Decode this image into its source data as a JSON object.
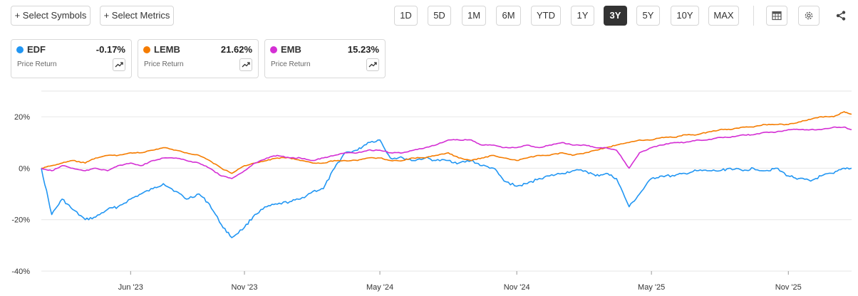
{
  "toolbar": {
    "select_symbols": "+ Select Symbols",
    "select_metrics": "+ Select Metrics",
    "ranges": [
      "1D",
      "5D",
      "1M",
      "6M",
      "YTD",
      "1Y",
      "3Y",
      "5Y",
      "10Y",
      "MAX"
    ],
    "active_range": "3Y"
  },
  "cards": [
    {
      "symbol": "EDF",
      "change": "-0.17%",
      "metric": "Price Return",
      "color": "#2196F3"
    },
    {
      "symbol": "LEMB",
      "change": "21.62%",
      "metric": "Price Return",
      "color": "#F57C00"
    },
    {
      "symbol": "EMB",
      "change": "15.23%",
      "metric": "Price Return",
      "color": "#D42FD4"
    }
  ],
  "colors": {
    "EDF": "#2196F3",
    "LEMB": "#F57C00",
    "EMB": "#D42FD4",
    "grid": "#e6e6e6",
    "active_button": "#333333"
  },
  "icons": {
    "table": "table-icon",
    "settings": "gear-icon",
    "share": "share-icon",
    "trend": "trend-arrow-icon"
  },
  "chart_data": {
    "type": "line",
    "title": "",
    "xlabel": "",
    "ylabel": "",
    "y_unit": "%",
    "x_range": [
      "2023-02-01",
      "2026-01-25"
    ],
    "ylim": [
      -40,
      30
    ],
    "y_ticks": [
      20,
      0,
      -20,
      -40
    ],
    "y_tick_labels": [
      "20%",
      "0%",
      "-20%",
      "-40%"
    ],
    "x_ticks": [
      "2023-06-01",
      "2023-11-01",
      "2024-05-01",
      "2024-11-01",
      "2025-05-01",
      "2025-11-01"
    ],
    "x_tick_labels": [
      "Jun '23",
      "Nov '23",
      "May '24",
      "Nov '24",
      "May '25",
      "Nov '25"
    ],
    "grid": true,
    "legend": "top-left cards",
    "series": [
      {
        "name": "EDF",
        "x": [
          "2023-02-01",
          "2023-02-15",
          "2023-03-01",
          "2023-03-15",
          "2023-04-01",
          "2023-04-15",
          "2023-05-01",
          "2023-05-15",
          "2023-06-01",
          "2023-06-15",
          "2023-07-01",
          "2023-07-15",
          "2023-08-01",
          "2023-08-15",
          "2023-09-01",
          "2023-09-15",
          "2023-10-01",
          "2023-10-15",
          "2023-11-01",
          "2023-11-15",
          "2023-12-01",
          "2023-12-15",
          "2024-01-01",
          "2024-01-15",
          "2024-02-01",
          "2024-02-15",
          "2024-03-01",
          "2024-03-15",
          "2024-04-01",
          "2024-04-15",
          "2024-05-01",
          "2024-05-15",
          "2024-06-01",
          "2024-06-15",
          "2024-07-01",
          "2024-07-15",
          "2024-08-01",
          "2024-08-15",
          "2024-09-01",
          "2024-09-15",
          "2024-10-01",
          "2024-10-15",
          "2024-11-01",
          "2024-11-15",
          "2024-12-01",
          "2024-12-15",
          "2025-01-01",
          "2025-01-15",
          "2025-02-01",
          "2025-02-15",
          "2025-03-01",
          "2025-03-15",
          "2025-04-01",
          "2025-04-15",
          "2025-05-01",
          "2025-05-15",
          "2025-06-01",
          "2025-06-15",
          "2025-07-01",
          "2025-07-15",
          "2025-08-01",
          "2025-08-15",
          "2025-09-01",
          "2025-09-15",
          "2025-10-01",
          "2025-10-15",
          "2025-11-01",
          "2025-11-15",
          "2025-12-01",
          "2025-12-15",
          "2026-01-01",
          "2026-01-15",
          "2026-01-25"
        ],
        "values": [
          0,
          -18,
          -12,
          -16,
          -20,
          -19,
          -16,
          -15,
          -12,
          -10,
          -8,
          -6,
          -9,
          -12,
          -10,
          -14,
          -22,
          -27,
          -23,
          -18,
          -15,
          -14,
          -13,
          -12,
          -9,
          -8,
          0,
          6,
          7,
          10,
          11,
          4,
          4,
          3,
          4,
          3,
          3,
          2,
          3,
          1,
          0,
          -5,
          -7,
          -6,
          -4,
          -3,
          -2,
          -1,
          -1,
          -3,
          -2,
          -4,
          -15,
          -10,
          -4,
          -3,
          -3,
          -2,
          -1,
          -1,
          -1,
          0,
          -1,
          0,
          -1,
          0,
          -3,
          -4,
          -5,
          -3,
          -2,
          0,
          0
        ]
      },
      {
        "name": "LEMB",
        "x": [
          "2023-02-01",
          "2023-02-15",
          "2023-03-01",
          "2023-03-15",
          "2023-04-01",
          "2023-04-15",
          "2023-05-01",
          "2023-05-15",
          "2023-06-01",
          "2023-06-15",
          "2023-07-01",
          "2023-07-15",
          "2023-08-01",
          "2023-08-15",
          "2023-09-01",
          "2023-09-15",
          "2023-10-01",
          "2023-10-15",
          "2023-11-01",
          "2023-11-15",
          "2023-12-01",
          "2023-12-15",
          "2024-01-01",
          "2024-01-15",
          "2024-02-01",
          "2024-02-15",
          "2024-03-01",
          "2024-03-15",
          "2024-04-01",
          "2024-04-15",
          "2024-05-01",
          "2024-05-15",
          "2024-06-01",
          "2024-06-15",
          "2024-07-01",
          "2024-07-15",
          "2024-08-01",
          "2024-08-15",
          "2024-09-01",
          "2024-09-15",
          "2024-10-01",
          "2024-10-15",
          "2024-11-01",
          "2024-11-15",
          "2024-12-01",
          "2024-12-15",
          "2025-01-01",
          "2025-01-15",
          "2025-02-01",
          "2025-02-15",
          "2025-03-01",
          "2025-03-15",
          "2025-04-01",
          "2025-04-15",
          "2025-05-01",
          "2025-05-15",
          "2025-06-01",
          "2025-06-15",
          "2025-07-01",
          "2025-07-15",
          "2025-08-01",
          "2025-08-15",
          "2025-09-01",
          "2025-09-15",
          "2025-10-01",
          "2025-10-15",
          "2025-11-01",
          "2025-11-15",
          "2025-12-01",
          "2025-12-15",
          "2026-01-01",
          "2026-01-15",
          "2026-01-25"
        ],
        "values": [
          0,
          1,
          2,
          3,
          2,
          4,
          5,
          5,
          6,
          6,
          7,
          8,
          7,
          6,
          5,
          3,
          0,
          -2,
          1,
          2,
          3,
          4,
          4,
          3,
          2,
          2,
          3,
          3,
          3,
          4,
          4,
          3,
          3,
          4,
          4,
          5,
          6,
          4,
          3,
          4,
          5,
          4,
          3,
          4,
          5,
          5,
          6,
          5,
          6,
          7,
          8,
          9,
          10,
          11,
          11,
          12,
          12,
          13,
          13,
          14,
          15,
          15,
          16,
          16,
          17,
          17,
          17,
          18,
          19,
          20,
          20,
          22,
          21
        ]
      },
      {
        "name": "EMB",
        "x": [
          "2023-02-01",
          "2023-02-15",
          "2023-03-01",
          "2023-03-15",
          "2023-04-01",
          "2023-04-15",
          "2023-05-01",
          "2023-05-15",
          "2023-06-01",
          "2023-06-15",
          "2023-07-01",
          "2023-07-15",
          "2023-08-01",
          "2023-08-15",
          "2023-09-01",
          "2023-09-15",
          "2023-10-01",
          "2023-10-15",
          "2023-11-01",
          "2023-11-15",
          "2023-12-01",
          "2023-12-15",
          "2024-01-01",
          "2024-01-15",
          "2024-02-01",
          "2024-02-15",
          "2024-03-01",
          "2024-03-15",
          "2024-04-01",
          "2024-04-15",
          "2024-05-01",
          "2024-05-15",
          "2024-06-01",
          "2024-06-15",
          "2024-07-01",
          "2024-07-15",
          "2024-08-01",
          "2024-08-15",
          "2024-09-01",
          "2024-09-15",
          "2024-10-01",
          "2024-10-15",
          "2024-11-01",
          "2024-11-15",
          "2024-12-01",
          "2024-12-15",
          "2025-01-01",
          "2025-01-15",
          "2025-02-01",
          "2025-02-15",
          "2025-03-01",
          "2025-03-15",
          "2025-04-01",
          "2025-04-15",
          "2025-05-01",
          "2025-05-15",
          "2025-06-01",
          "2025-06-15",
          "2025-07-01",
          "2025-07-15",
          "2025-08-01",
          "2025-08-15",
          "2025-09-01",
          "2025-09-15",
          "2025-10-01",
          "2025-10-15",
          "2025-11-01",
          "2025-11-15",
          "2025-12-01",
          "2025-12-15",
          "2026-01-01",
          "2026-01-15",
          "2026-01-25"
        ],
        "values": [
          0,
          -1,
          1,
          0,
          -1,
          0,
          -1,
          1,
          2,
          1,
          3,
          4,
          4,
          3,
          2,
          0,
          -3,
          -4,
          -1,
          2,
          4,
          5,
          4,
          4,
          3,
          4,
          5,
          6,
          6,
          7,
          7,
          6,
          6,
          7,
          8,
          9,
          11,
          11,
          11,
          9,
          9,
          8,
          8,
          9,
          8,
          9,
          10,
          9,
          9,
          8,
          8,
          7,
          0,
          6,
          8,
          9,
          10,
          10,
          11,
          11,
          12,
          12,
          13,
          13,
          14,
          14,
          15,
          15,
          15,
          15,
          16,
          16,
          15
        ]
      }
    ]
  }
}
